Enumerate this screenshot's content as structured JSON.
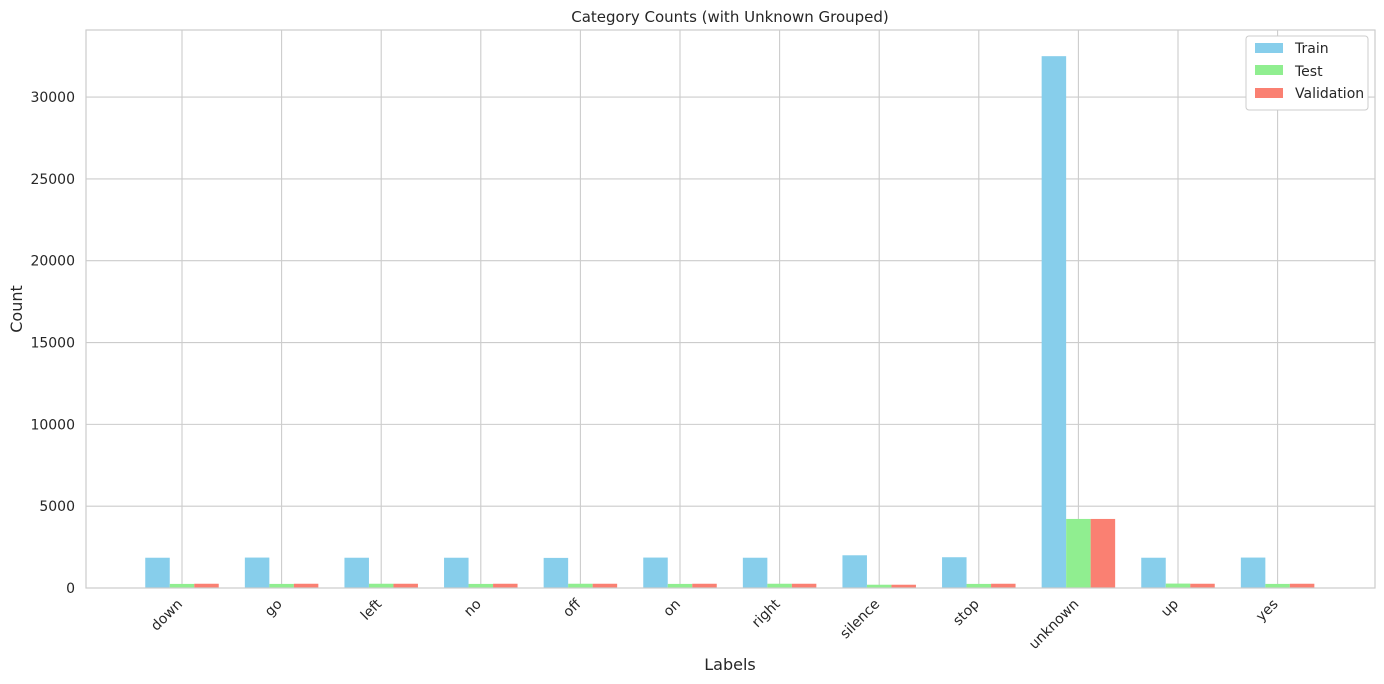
{
  "chart_data": {
    "type": "bar",
    "title": "Category Counts (with Unknown Grouped)",
    "xlabel": "Labels",
    "ylabel": "Count",
    "categories": [
      "down",
      "go",
      "left",
      "no",
      "off",
      "on",
      "right",
      "silence",
      "stop",
      "unknown",
      "up",
      "yes"
    ],
    "series": [
      {
        "name": "Train",
        "color": "#87ceeb",
        "values": [
          1850,
          1860,
          1850,
          1850,
          1840,
          1860,
          1850,
          2000,
          1880,
          32500,
          1850,
          1860
        ]
      },
      {
        "name": "Test",
        "color": "#90ee90",
        "values": [
          250,
          250,
          260,
          250,
          260,
          250,
          260,
          200,
          250,
          4220,
          270,
          250
        ]
      },
      {
        "name": "Validation",
        "color": "#fa8072",
        "values": [
          260,
          260,
          260,
          260,
          260,
          260,
          260,
          200,
          260,
          4220,
          260,
          260
        ]
      }
    ],
    "yticks": [
      0,
      5000,
      10000,
      15000,
      20000,
      25000,
      30000
    ],
    "ylim": [
      0,
      34100
    ],
    "grid": true,
    "legend_position": "top-right"
  }
}
